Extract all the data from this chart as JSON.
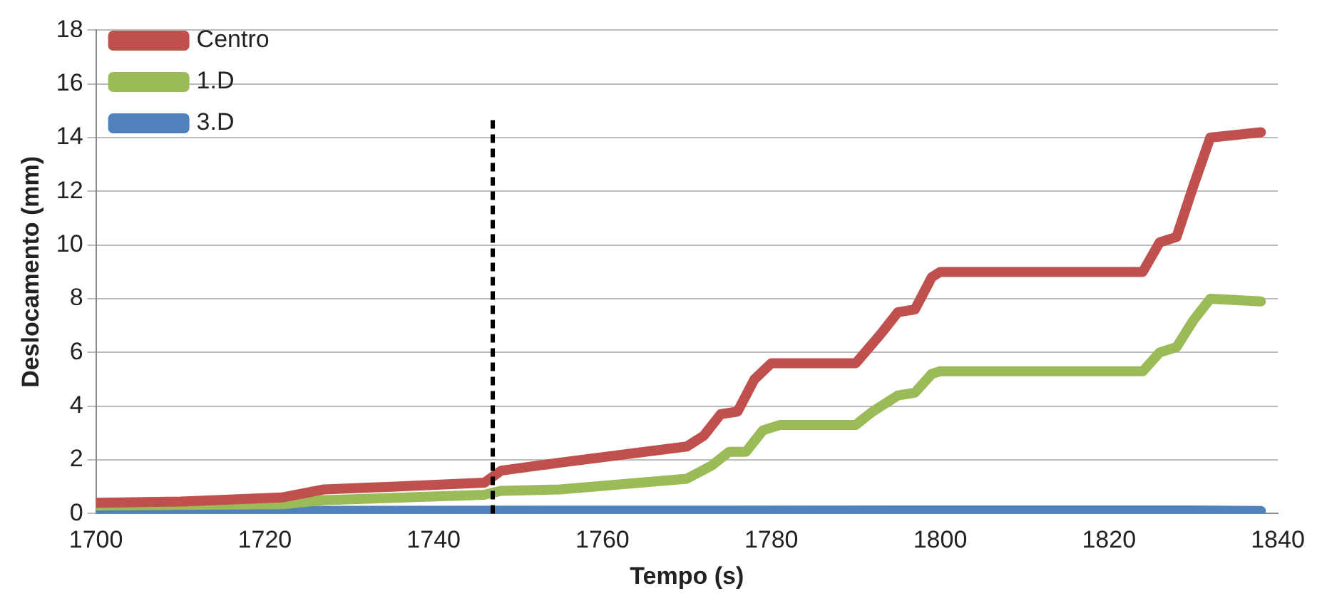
{
  "chart_data": {
    "type": "line",
    "xlabel": "Tempo (s)",
    "ylabel": "Deslocamento (mm)",
    "xlim": [
      1700,
      1840
    ],
    "xticks": [
      1700,
      1720,
      1740,
      1760,
      1780,
      1800,
      1820,
      1840
    ],
    "ylim": [
      0,
      18
    ],
    "yticks": [
      0,
      2,
      4,
      6,
      8,
      10,
      12,
      14,
      16,
      18
    ],
    "grid": "y",
    "legend": "top left",
    "marker": "none",
    "line_style": "solid",
    "ref_lines": [
      {
        "axis": "x",
        "value": 1747,
        "color": "#000000",
        "line_style": "dashed"
      }
    ],
    "series": [
      {
        "name": "Centro",
        "color": "#c0504d",
        "x": [
          1700,
          1710,
          1722,
          1727,
          1735,
          1746,
          1748,
          1755,
          1765,
          1770,
          1772,
          1774,
          1776,
          1778,
          1780,
          1790,
          1793,
          1795,
          1797,
          1799,
          1800,
          1824,
          1826,
          1828,
          1830,
          1832,
          1838
        ],
        "values": [
          0.4,
          0.45,
          0.6,
          0.9,
          1.0,
          1.15,
          1.6,
          1.9,
          2.3,
          2.5,
          2.9,
          3.7,
          3.8,
          5.0,
          5.6,
          5.6,
          6.7,
          7.5,
          7.6,
          8.8,
          9.0,
          9.0,
          10.1,
          10.3,
          12.2,
          14.0,
          14.2
        ]
      },
      {
        "name": "1.D",
        "color": "#9bbb59",
        "x": [
          1700,
          1722,
          1727,
          1746,
          1748,
          1755,
          1770,
          1773,
          1775,
          1777,
          1779,
          1781,
          1790,
          1792,
          1795,
          1797,
          1799,
          1800,
          1824,
          1826,
          1828,
          1830,
          1832,
          1838
        ],
        "values": [
          0.3,
          0.35,
          0.5,
          0.7,
          0.85,
          0.9,
          1.3,
          1.8,
          2.3,
          2.3,
          3.1,
          3.3,
          3.3,
          3.8,
          4.4,
          4.5,
          5.2,
          5.3,
          5.3,
          6.0,
          6.2,
          7.2,
          8.0,
          7.9
        ]
      },
      {
        "name": "3.D",
        "color": "#4f81bd",
        "x": [
          1700,
          1830,
          1838
        ],
        "values": [
          0.1,
          0.12,
          0.1
        ]
      }
    ]
  }
}
